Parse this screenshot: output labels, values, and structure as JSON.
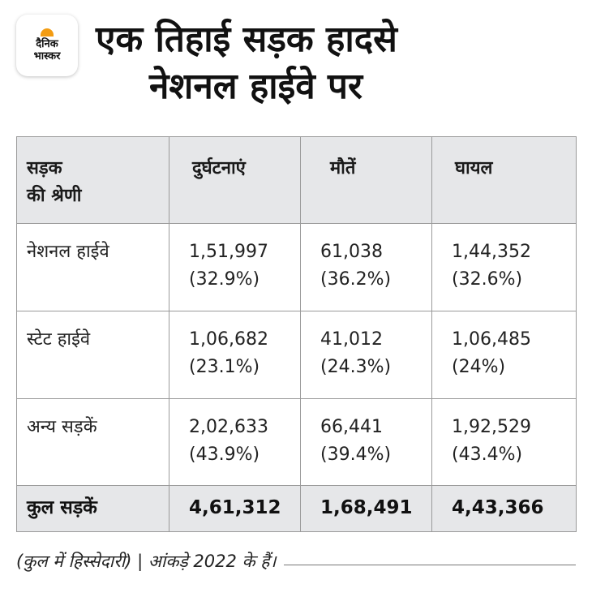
{
  "logo": {
    "line1": "दैनिक",
    "line2": "भास्कर",
    "accent": "#f39c12"
  },
  "title": {
    "line1": "एक तिहाई सड़क हादसे",
    "line2": "नेशनल हाईवे पर"
  },
  "table": {
    "headers": [
      "सड़क\nकी श्रेणी",
      "दुर्घटनाएं",
      "मौतें",
      "घायल"
    ],
    "rows": [
      {
        "category": "नेशनल हाईवे",
        "accidents": "1,51,997",
        "accidents_share": "(32.9%)",
        "deaths": "61,038",
        "deaths_share": "(36.2%)",
        "injured": "1,44,352",
        "injured_share": "(32.6%)"
      },
      {
        "category": "स्टेट हाईवे",
        "accidents": "1,06,682",
        "accidents_share": "(23.1%)",
        "deaths": "41,012",
        "deaths_share": "(24.3%)",
        "injured": "1,06,485",
        "injured_share": "(24%)"
      },
      {
        "category": "अन्य सड़कें",
        "accidents": "2,02,633",
        "accidents_share": "(43.9%)",
        "deaths": "66,441",
        "deaths_share": "(39.4%)",
        "injured": "1,92,529",
        "injured_share": "(43.4%)"
      }
    ],
    "total": {
      "category": "कुल सड़कें",
      "accidents": "4,61,312",
      "deaths": "1,68,491",
      "injured": "4,43,366"
    },
    "header_bg": "#e6e7e9"
  },
  "footer": {
    "note": "(कुल में हिस्सेदारी) | आंकड़े 2022 के हैं।"
  }
}
